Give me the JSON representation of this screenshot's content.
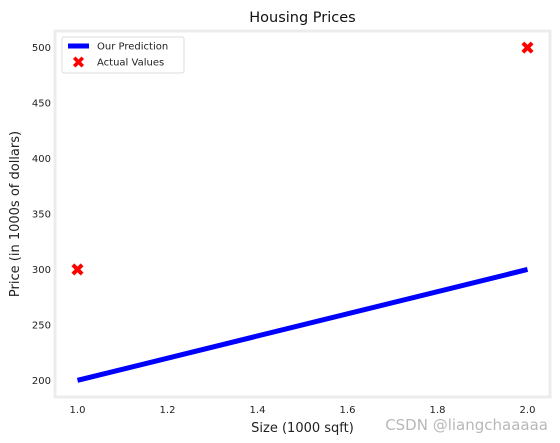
{
  "chart_data": {
    "type": "line",
    "title": "Housing Prices",
    "xlabel": "Size (1000 sqft)",
    "ylabel": "Price (in 1000s of dollars)",
    "xlim": [
      0.95,
      2.05
    ],
    "ylim": [
      185,
      515
    ],
    "x_ticks": [
      1.0,
      1.2,
      1.4,
      1.6,
      1.8,
      2.0
    ],
    "x_tick_labels": [
      "1.0",
      "1.2",
      "1.4",
      "1.6",
      "1.8",
      "2.0"
    ],
    "y_ticks": [
      200,
      250,
      300,
      350,
      400,
      450,
      500
    ],
    "y_tick_labels": [
      "200",
      "250",
      "300",
      "350",
      "400",
      "450",
      "500"
    ],
    "grid": false,
    "legend_position": "top-left",
    "series": [
      {
        "name": "Our Prediction",
        "kind": "line",
        "color": "#0000ff",
        "points": [
          {
            "x": 1.0,
            "y": 200
          },
          {
            "x": 2.0,
            "y": 300
          }
        ]
      },
      {
        "name": "Actual Values",
        "kind": "scatter",
        "marker": "X",
        "color": "#ff0000",
        "points": [
          {
            "x": 1.0,
            "y": 300
          },
          {
            "x": 2.0,
            "y": 500
          }
        ]
      }
    ]
  },
  "watermark": "CSDN @liangchaaaaa"
}
